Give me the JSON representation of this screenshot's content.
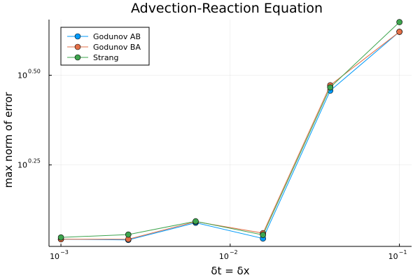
{
  "chart_data": {
    "type": "line",
    "title": "Advection-Reaction Equation",
    "xlabel": "δt = δx",
    "ylabel": "max norm of error",
    "xscale": "log",
    "yscale": "log",
    "xlim": [
      0.00085,
      0.118
    ],
    "ylim_log10": [
      0.023,
      0.655
    ],
    "x_ticks": [
      {
        "base": "10",
        "exp": "−3",
        "value": 0.001
      },
      {
        "base": "10",
        "exp": "−2",
        "value": 0.01
      },
      {
        "base": "10",
        "exp": "−1",
        "value": 0.1
      }
    ],
    "y_ticks": [
      {
        "base": "10",
        "exp": "0.25",
        "log_value": 0.25
      },
      {
        "base": "10",
        "exp": "0.50",
        "log_value": 0.5
      }
    ],
    "x": [
      0.001,
      0.0025,
      0.00625,
      0.015625,
      0.039,
      0.1
    ],
    "series": [
      {
        "name": "Godunov AB",
        "color": "#009AFA",
        "log_values": [
          0.043,
          0.041,
          0.089,
          0.045,
          0.457,
          0.621
        ]
      },
      {
        "name": "Godunov BA",
        "color": "#E36F47",
        "log_values": [
          0.043,
          0.043,
          0.092,
          0.06,
          0.472,
          0.621
        ]
      },
      {
        "name": "Strang",
        "color": "#3EA44E",
        "log_values": [
          0.048,
          0.056,
          0.093,
          0.055,
          0.466,
          0.648
        ]
      }
    ],
    "grid": true,
    "legend_position": "top-left"
  }
}
